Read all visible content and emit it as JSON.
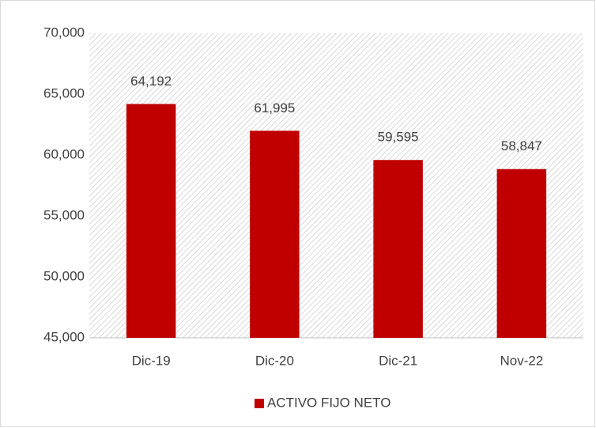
{
  "chart_data": {
    "type": "bar",
    "categories": [
      "Dic-19",
      "Dic-20",
      "Dic-21",
      "Nov-22"
    ],
    "series": [
      {
        "name": "ACTIVO FIJO NETO",
        "color": "#c00000",
        "values": [
          64192,
          61995,
          59595,
          58847
        ],
        "value_labels": [
          "64,192",
          "61,995",
          "59,595",
          "58,847"
        ]
      }
    ],
    "ylim": [
      45000,
      70000
    ],
    "yticks": [
      {
        "value": 45000,
        "label": "45,000"
      },
      {
        "value": 50000,
        "label": "50,000"
      },
      {
        "value": 55000,
        "label": "55,000"
      },
      {
        "value": 60000,
        "label": "60,000"
      },
      {
        "value": 65000,
        "label": "65,000"
      },
      {
        "value": 70000,
        "label": "70,000"
      }
    ],
    "grid": false,
    "legend": "bottom"
  }
}
